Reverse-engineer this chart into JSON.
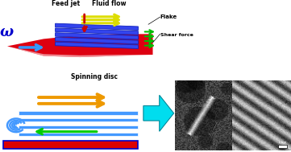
{
  "bg_color": "#ffffff",
  "top_panel": {
    "disc_color": "#dd0011",
    "disc_highlight": "#ffffff",
    "flake_color": "#3344ee",
    "flake_edge_color": "#1122bb",
    "fluid_arrow_color": "#dddd00",
    "shear_arrow_color": "#00bb00",
    "omega_color": "#0000cc",
    "blue_arrow_color": "#3399ff",
    "feed_jet_color": "#cc0000",
    "labels": {
      "feed_jet": "Feed jet",
      "fluid_flow": "Fluid flow",
      "flake": "Flake",
      "shear_force": "Shear force",
      "spinning_disc": "Spinning disc",
      "omega": "ω"
    }
  },
  "bottom_left": {
    "stripe_color": "#4499ff",
    "stripe_bg": "#ffffff",
    "red_bar_color": "#dd0000",
    "red_bar_edge": "#0000cc",
    "orange_arrow_color": "#ee9900",
    "green_arrow_color": "#00cc00",
    "cyan_arrow_color": "#00ddee",
    "cyan_arrow_edge": "#008899"
  }
}
